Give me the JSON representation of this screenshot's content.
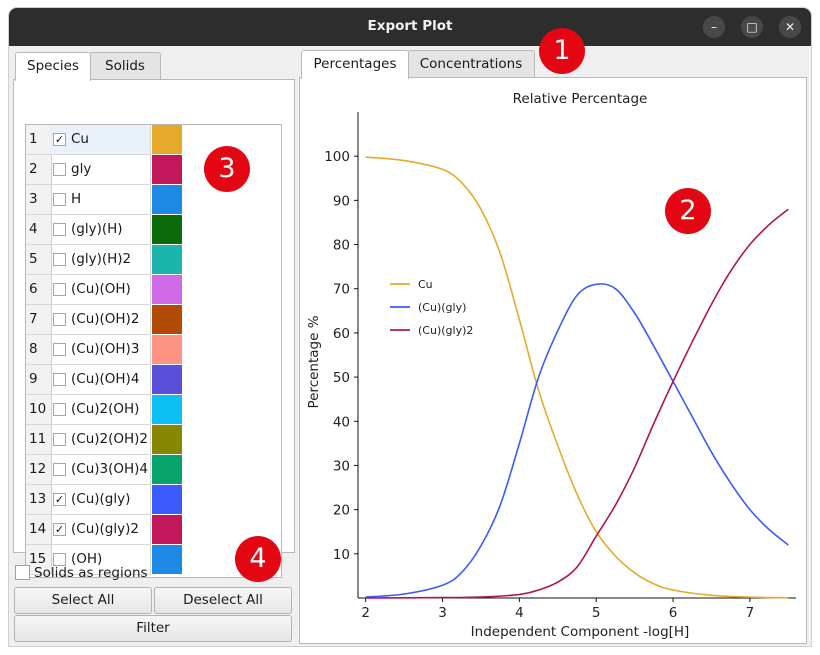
{
  "window": {
    "title": "Export Plot",
    "controls": [
      "–",
      "□",
      "✕"
    ]
  },
  "left_tabs": [
    "Species",
    "Solids"
  ],
  "right_tabs": [
    "Percentages",
    "Concentrations"
  ],
  "species": [
    {
      "num": "1",
      "name": "Cu",
      "checked": true,
      "color": "#e6a92a"
    },
    {
      "num": "2",
      "name": "gly",
      "checked": false,
      "color": "#c2185b"
    },
    {
      "num": "3",
      "name": "H",
      "checked": false,
      "color": "#1e88e5"
    },
    {
      "num": "4",
      "name": "(gly)(H)",
      "checked": false,
      "color": "#0b6b0b"
    },
    {
      "num": "5",
      "name": "(gly)(H)2",
      "checked": false,
      "color": "#1cb5ac"
    },
    {
      "num": "6",
      "name": "(Cu)(OH)",
      "checked": false,
      "color": "#cf69e6"
    },
    {
      "num": "7",
      "name": "(Cu)(OH)2",
      "checked": false,
      "color": "#b04a06"
    },
    {
      "num": "8",
      "name": "(Cu)(OH)3",
      "checked": false,
      "color": "#fd9382"
    },
    {
      "num": "9",
      "name": "(Cu)(OH)4",
      "checked": false,
      "color": "#5a4fd9"
    },
    {
      "num": "10",
      "name": "(Cu)2(OH)",
      "checked": false,
      "color": "#0cbff2"
    },
    {
      "num": "11",
      "name": "(Cu)2(OH)2",
      "checked": false,
      "color": "#878700"
    },
    {
      "num": "12",
      "name": "(Cu)3(OH)4",
      "checked": false,
      "color": "#06a46b"
    },
    {
      "num": "13",
      "name": "(Cu)(gly)",
      "checked": true,
      "color": "#3d5afe"
    },
    {
      "num": "14",
      "name": "(Cu)(gly)2",
      "checked": true,
      "color": "#c2185b"
    },
    {
      "num": "15",
      "name": "(OH)",
      "checked": false,
      "color": "#1e88e5"
    }
  ],
  "options": {
    "solids_as_regions": "Solids as regions",
    "solids_checked": false
  },
  "buttons": {
    "select_all": "Select All",
    "deselect_all": "Deselect All",
    "filter": "Filter"
  },
  "badges": [
    "1",
    "2",
    "3",
    "4"
  ],
  "chart_data": {
    "type": "line",
    "title": "Relative Percentage",
    "xlabel": "Independent Component -log[H]",
    "ylabel": "Percentage %",
    "xlim": [
      1.9,
      7.6
    ],
    "ylim": [
      0,
      110
    ],
    "xticks": [
      2,
      3,
      4,
      5,
      6,
      7
    ],
    "yticks": [
      10,
      20,
      30,
      40,
      50,
      60,
      70,
      80,
      90,
      100
    ],
    "legend": "left-middle",
    "series": [
      {
        "name": "Cu",
        "color": "#e6a92a",
        "x": [
          2.0,
          2.5,
          3.0,
          3.25,
          3.5,
          3.75,
          4.0,
          4.25,
          4.5,
          4.75,
          5.0,
          5.25,
          5.5,
          5.75,
          6.0,
          6.5,
          7.0,
          7.5
        ],
        "y": [
          99.8,
          99.0,
          97.0,
          94.0,
          88.0,
          78.0,
          63.0,
          47.0,
          34.5,
          23.5,
          15.0,
          9.5,
          5.7,
          3.2,
          1.8,
          0.6,
          0.2,
          0.05
        ]
      },
      {
        "name": "(Cu)(gly)",
        "color": "#3d5afe",
        "x": [
          2.0,
          2.5,
          3.0,
          3.25,
          3.5,
          3.75,
          4.0,
          4.25,
          4.5,
          4.75,
          5.0,
          5.25,
          5.5,
          5.75,
          6.0,
          6.25,
          6.5,
          6.75,
          7.0,
          7.25,
          7.5
        ],
        "y": [
          0.2,
          0.9,
          2.9,
          5.8,
          11.8,
          21.0,
          35.0,
          50.0,
          60.5,
          68.5,
          71.0,
          70.0,
          64.5,
          57.0,
          49.0,
          41.0,
          33.0,
          26.0,
          20.0,
          15.5,
          12.0
        ]
      },
      {
        "name": "(Cu)(gly)2",
        "color": "#b0154f",
        "x": [
          2.0,
          3.0,
          3.5,
          4.0,
          4.25,
          4.5,
          4.75,
          5.0,
          5.25,
          5.5,
          5.75,
          6.0,
          6.25,
          6.5,
          6.75,
          7.0,
          7.25,
          7.5
        ],
        "y": [
          0.0,
          0.1,
          0.2,
          0.8,
          1.8,
          3.6,
          7.0,
          14.0,
          21.0,
          29.5,
          39.5,
          49.0,
          58.0,
          66.5,
          74.0,
          80.0,
          84.5,
          88.0
        ]
      }
    ]
  }
}
